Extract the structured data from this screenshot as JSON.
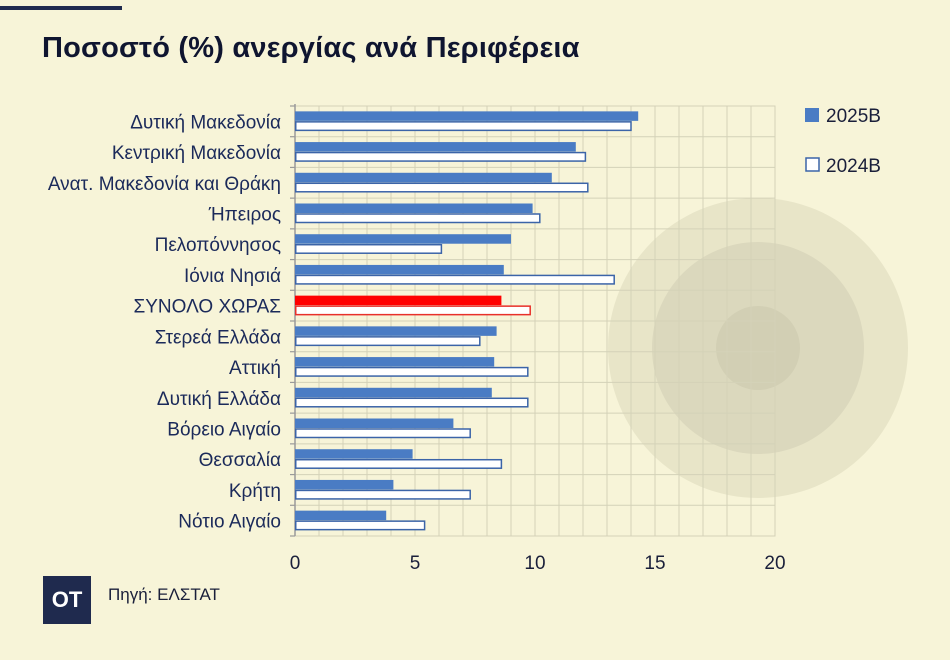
{
  "header": {
    "title": "Ποσοστό (%) ανεργίας ανά Περιφέρεια"
  },
  "footer": {
    "logo_text": "OT",
    "source": "Πηγή: ΕΛΣΤΑΤ"
  },
  "colors": {
    "series_2025B": "#4a7cc4",
    "series_2024B_fill": "#ffffff",
    "series_2024B_stroke": "#3b64a8",
    "highlight_fill": "#ff0000",
    "highlight_stroke": "#e8302a",
    "gridline": "#d4d2b8",
    "axis_text": "#1a1f3a",
    "label_text": "#1b2a5a"
  },
  "chart_data": {
    "type": "bar",
    "orientation": "horizontal",
    "title": "Ποσοστό (%) ανεργίας ανά Περιφέρεια",
    "xlabel": "",
    "ylabel": "",
    "xlim": [
      0,
      20
    ],
    "xticks": [
      0,
      5,
      10,
      15,
      20
    ],
    "grid": true,
    "legend_position": "top-right",
    "highlight_category": "ΣΥΝΟΛΟ ΧΩΡΑΣ",
    "categories": [
      "Δυτική Μακεδονία",
      "Κεντρική Μακεδονία",
      "Ανατ. Μακεδονία και Θράκη",
      "Ήπειρος",
      "Πελοπόννησος",
      "Ιόνια Νησιά",
      "ΣΥΝΟΛΟ ΧΩΡΑΣ",
      "Στερεά Ελλάδα",
      "Αττική",
      "Δυτική Ελλάδα",
      "Βόρειο Αιγαίο",
      "Θεσσαλία",
      "Κρήτη",
      "Νότιο Αιγαίο"
    ],
    "series": [
      {
        "name": "2025B",
        "style": "filled",
        "values": [
          14.3,
          11.7,
          10.7,
          9.9,
          9.0,
          8.7,
          8.6,
          8.4,
          8.3,
          8.2,
          6.6,
          4.9,
          4.1,
          3.8
        ]
      },
      {
        "name": "2024B",
        "style": "outline",
        "values": [
          14.0,
          12.1,
          12.2,
          10.2,
          6.1,
          13.3,
          9.8,
          7.7,
          9.7,
          9.7,
          7.3,
          8.6,
          7.3,
          5.4
        ]
      }
    ]
  }
}
